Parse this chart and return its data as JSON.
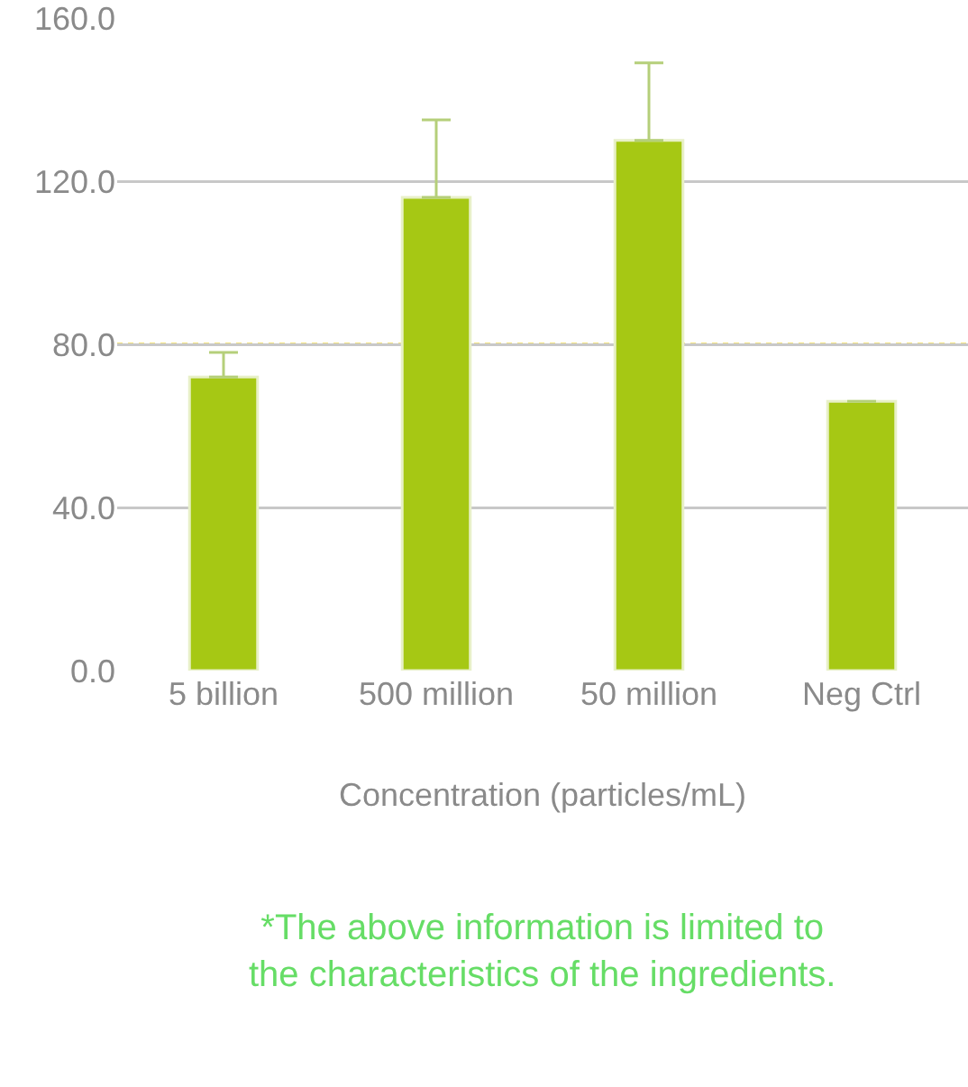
{
  "chart_data": {
    "type": "bar",
    "xlabel": "Concentration (particles/mL)",
    "categories": [
      "5 billion",
      "500 million",
      "50 million",
      "Neg Ctrl"
    ],
    "values": [
      72,
      116,
      130,
      66
    ],
    "errors": [
      [
        72,
        78
      ],
      [
        116,
        135
      ],
      [
        130,
        149
      ],
      null
    ],
    "color": "#a6c814",
    "ylim": [
      0,
      160
    ],
    "yticks": [
      {
        "value": 0,
        "label": "0.0"
      },
      {
        "value": 40,
        "label": "40.0"
      },
      {
        "value": 80,
        "label": "80.0"
      },
      {
        "value": 120,
        "label": "120.0"
      },
      {
        "value": 160,
        "label": "160.0"
      }
    ],
    "grid": "y",
    "ref_lines": [
      {
        "axis": "y",
        "value": 80,
        "color": "#e8c800",
        "line_style": "dotted"
      }
    ],
    "annotations": [
      "*The above information is limited to the characteristics of the ingredients."
    ]
  }
}
